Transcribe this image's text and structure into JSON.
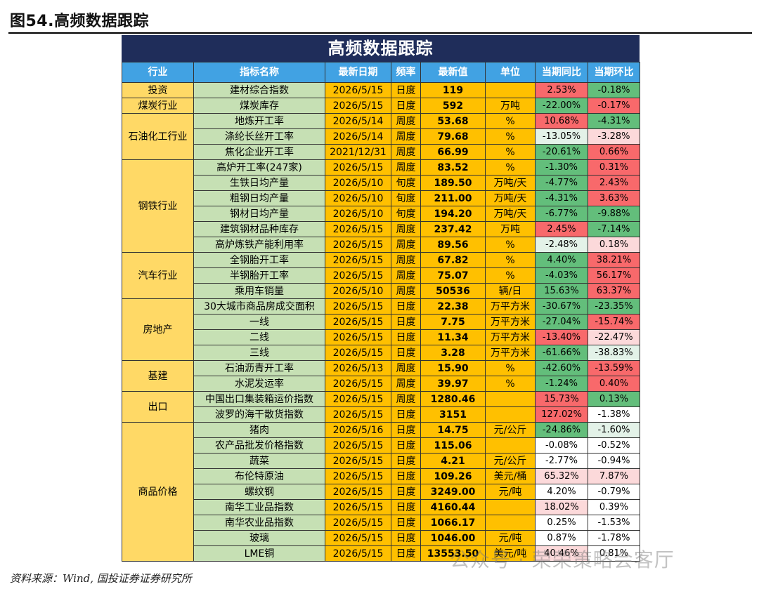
{
  "figure_title": "图54.高频数据跟踪",
  "table_title": "高频数据跟踪",
  "columns": [
    "行业",
    "指标名称",
    "最新日期",
    "频率",
    "最新值",
    "单位",
    "当期同比",
    "当期环比"
  ],
  "groups": [
    {
      "industry": "投资",
      "rows": [
        {
          "name": "建材综合指数",
          "date": "2026/5/15",
          "freq": "日度",
          "value": "119",
          "unit": "",
          "yoy": "2.53%",
          "yoy_c": "s-r",
          "mom": "-0.18%",
          "mom_c": "s-g"
        }
      ]
    },
    {
      "industry": "煤炭行业",
      "rows": [
        {
          "name": "煤炭库存",
          "date": "2026/5/15",
          "freq": "日度",
          "value": "592",
          "unit": "万吨",
          "yoy": "-22.00%",
          "yoy_c": "s-g",
          "mom": "-0.17%",
          "mom_c": "s-r"
        }
      ]
    },
    {
      "industry": "石油化工行业",
      "rows": [
        {
          "name": "地炼开工率",
          "date": "2026/5/14",
          "freq": "周度",
          "value": "53.68",
          "unit": "%",
          "yoy": "10.68%",
          "yoy_c": "s-r",
          "mom": "-4.31%",
          "mom_c": "s-g"
        },
        {
          "name": "涤纶长丝开工率",
          "date": "2026/5/14",
          "freq": "周度",
          "value": "79.68",
          "unit": "%",
          "yoy": "-13.05%",
          "yoy_c": "s-lg",
          "mom": "-3.28%",
          "mom_c": "s-lr"
        },
        {
          "name": "焦化企业开工率",
          "date": "2021/12/31",
          "freq": "周度",
          "value": "66.99",
          "unit": "%",
          "yoy": "-20.61%",
          "yoy_c": "s-g",
          "mom": "0.66%",
          "mom_c": "s-r"
        }
      ]
    },
    {
      "industry": "钢铁行业",
      "rows": [
        {
          "name": "高炉开工率(247家)",
          "date": "2026/5/15",
          "freq": "周度",
          "value": "83.52",
          "unit": "%",
          "yoy": "-1.30%",
          "yoy_c": "s-g",
          "mom": "0.31%",
          "mom_c": "s-r"
        },
        {
          "name": "生铁日均产量",
          "date": "2026/5/10",
          "freq": "旬度",
          "value": "189.50",
          "unit": "万吨/天",
          "yoy": "-4.77%",
          "yoy_c": "s-g",
          "mom": "2.43%",
          "mom_c": "s-r"
        },
        {
          "name": "粗钢日均产量",
          "date": "2026/5/10",
          "freq": "旬度",
          "value": "211.00",
          "unit": "万吨/天",
          "yoy": "-4.31%",
          "yoy_c": "s-g",
          "mom": "3.63%",
          "mom_c": "s-r"
        },
        {
          "name": "钢材日均产量",
          "date": "2026/5/10",
          "freq": "旬度",
          "value": "194.20",
          "unit": "万吨/天",
          "yoy": "-6.77%",
          "yoy_c": "s-g",
          "mom": "-9.88%",
          "mom_c": "s-g"
        },
        {
          "name": "建筑钢材品种库存",
          "date": "2026/5/15",
          "freq": "周度",
          "value": "237.42",
          "unit": "万吨",
          "yoy": "2.45%",
          "yoy_c": "s-r",
          "mom": "-7.14%",
          "mom_c": "s-g"
        },
        {
          "name": "高炉炼铁产能利用率",
          "date": "2026/5/15",
          "freq": "周度",
          "value": "89.56",
          "unit": "%",
          "yoy": "-2.48%",
          "yoy_c": "s-lg",
          "mom": "0.18%",
          "mom_c": "s-lr"
        }
      ]
    },
    {
      "industry": "汽车行业",
      "rows": [
        {
          "name": "全钢胎开工率",
          "date": "2026/5/15",
          "freq": "周度",
          "value": "67.82",
          "unit": "%",
          "yoy": "4.40%",
          "yoy_c": "s-g",
          "mom": "38.21%",
          "mom_c": "s-r"
        },
        {
          "name": "半钢胎开工率",
          "date": "2026/5/15",
          "freq": "周度",
          "value": "75.07",
          "unit": "%",
          "yoy": "-4.03%",
          "yoy_c": "s-g",
          "mom": "56.17%",
          "mom_c": "s-r"
        },
        {
          "name": "乘用车销量",
          "date": "2026/5/10",
          "freq": "周度",
          "value": "50536",
          "unit": "辆/日",
          "yoy": "15.63%",
          "yoy_c": "s-g",
          "mom": "63.37%",
          "mom_c": "s-r"
        }
      ]
    },
    {
      "industry": "房地产",
      "rows": [
        {
          "name": "30大城市商品房成交面积",
          "date": "2026/5/15",
          "freq": "日度",
          "value": "22.38",
          "unit": "万平方米",
          "yoy": "-30.67%",
          "yoy_c": "s-g",
          "mom": "-23.35%",
          "mom_c": "s-g"
        },
        {
          "name": "一线",
          "date": "2026/5/15",
          "freq": "日度",
          "value": "7.75",
          "unit": "万平方米",
          "yoy": "-27.04%",
          "yoy_c": "s-g",
          "mom": "-15.74%",
          "mom_c": "s-r"
        },
        {
          "name": "二线",
          "date": "2026/5/15",
          "freq": "日度",
          "value": "11.34",
          "unit": "万平方米",
          "yoy": "-13.40%",
          "yoy_c": "s-r",
          "mom": "-22.47%",
          "mom_c": "s-lr"
        },
        {
          "name": "三线",
          "date": "2026/5/15",
          "freq": "日度",
          "value": "3.28",
          "unit": "万平方米",
          "yoy": "-61.66%",
          "yoy_c": "s-g",
          "mom": "-38.83%",
          "mom_c": "s-lg"
        }
      ]
    },
    {
      "industry": "基建",
      "rows": [
        {
          "name": "石油沥青开工率",
          "date": "2026/5/13",
          "freq": "周度",
          "value": "15.90",
          "unit": "%",
          "yoy": "-42.60%",
          "yoy_c": "s-g",
          "mom": "-13.59%",
          "mom_c": "s-r"
        },
        {
          "name": "水泥发运率",
          "date": "2026/5/15",
          "freq": "周度",
          "value": "39.97",
          "unit": "%",
          "yoy": "-1.24%",
          "yoy_c": "s-g",
          "mom": "0.40%",
          "mom_c": "s-r"
        }
      ]
    },
    {
      "industry": "出口",
      "rows": [
        {
          "name": "中国出口集装箱运价指数",
          "date": "2026/5/15",
          "freq": "周度",
          "value": "1280.46",
          "unit": "",
          "yoy": "15.73%",
          "yoy_c": "s-r",
          "mom": "0.13%",
          "mom_c": "s-g"
        },
        {
          "name": "波罗的海干散货指数",
          "date": "2026/5/15",
          "freq": "日度",
          "value": "3151",
          "unit": "",
          "yoy": "127.02%",
          "yoy_c": "s-r",
          "mom": "-1.38%",
          "mom_c": "s-w"
        }
      ]
    },
    {
      "industry": "商品价格",
      "rows": [
        {
          "name": "猪肉",
          "date": "2026/5/16",
          "freq": "日度",
          "value": "14.75",
          "unit": "元/公斤",
          "yoy": "-24.86%",
          "yoy_c": "s-g",
          "mom": "-1.60%",
          "mom_c": "s-lg"
        },
        {
          "name": "农产品批发价格指数",
          "date": "2026/5/15",
          "freq": "日度",
          "value": "115.06",
          "unit": "",
          "yoy": "-0.08%",
          "yoy_c": "s-w",
          "mom": "-0.52%",
          "mom_c": "s-w"
        },
        {
          "name": "蔬菜",
          "date": "2026/5/15",
          "freq": "日度",
          "value": "4.21",
          "unit": "元/公斤",
          "yoy": "-2.77%",
          "yoy_c": "s-w",
          "mom": "-0.94%",
          "mom_c": "s-w"
        },
        {
          "name": "布伦特原油",
          "date": "2026/5/15",
          "freq": "日度",
          "value": "109.26",
          "unit": "美元/桶",
          "yoy": "65.32%",
          "yoy_c": "s-lr",
          "mom": "7.87%",
          "mom_c": "s-lr"
        },
        {
          "name": "螺纹钢",
          "date": "2026/5/15",
          "freq": "日度",
          "value": "3249.00",
          "unit": "元/吨",
          "yoy": "4.20%",
          "yoy_c": "s-w",
          "mom": "-0.79%",
          "mom_c": "s-w"
        },
        {
          "name": "南华工业品指数",
          "date": "2026/5/15",
          "freq": "日度",
          "value": "4160.44",
          "unit": "",
          "yoy": "18.02%",
          "yoy_c": "s-lr",
          "mom": "0.39%",
          "mom_c": "s-w"
        },
        {
          "name": "南华农业品指数",
          "date": "2026/5/15",
          "freq": "日度",
          "value": "1066.17",
          "unit": "",
          "yoy": "0.25%",
          "yoy_c": "s-w",
          "mom": "-1.53%",
          "mom_c": "s-w"
        },
        {
          "name": "玻璃",
          "date": "2026/5/15",
          "freq": "日度",
          "value": "1046.00",
          "unit": "元/吨",
          "yoy": "0.87%",
          "yoy_c": "s-w",
          "mom": "-1.78%",
          "mom_c": "s-w"
        },
        {
          "name": "LME铜",
          "date": "2026/5/15",
          "freq": "日度",
          "value": "13553.50",
          "unit": "美元/吨",
          "yoy": "40.46%",
          "yoy_c": "s-lr",
          "mom": "0.81%",
          "mom_c": "s-w"
        }
      ]
    }
  ],
  "source": "资料来源：Wind, 国投证券证券研究所",
  "watermark": "公众号 · 荣荣策略会客厅"
}
